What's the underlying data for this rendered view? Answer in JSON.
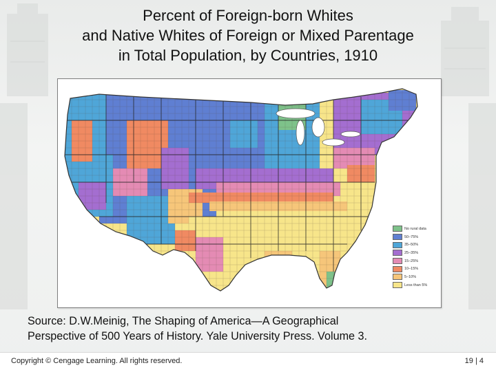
{
  "title": {
    "lines": [
      "Percent of Foreign-born Whites",
      "and Native Whites of Foreign or Mixed Parentage",
      "in Total Population, by Countries, 1910"
    ]
  },
  "map": {
    "legend": [
      {
        "label": "No rural data",
        "color": "#7ec28a"
      },
      {
        "label": "50–75%",
        "color": "#5f7fd2"
      },
      {
        "label": "35–50%",
        "color": "#4fa6d8"
      },
      {
        "label": "25–35%",
        "color": "#a46ed0"
      },
      {
        "label": "15–25%",
        "color": "#e48bb4"
      },
      {
        "label": "10–15%",
        "color": "#f08a62"
      },
      {
        "label": "5–10%",
        "color": "#f6c67a"
      },
      {
        "label": "Less than 5%",
        "color": "#f7e58a"
      }
    ]
  },
  "source": {
    "lines": [
      "Source: D.W.Meinig, The Shaping of America—A Geographical",
      "Perspective of 500 Years of History. Yale University Press. Volume 3."
    ]
  },
  "footer": {
    "copyright": "Copyright © Cengage Learning. All rights reserved.",
    "page": "19 | 4"
  }
}
